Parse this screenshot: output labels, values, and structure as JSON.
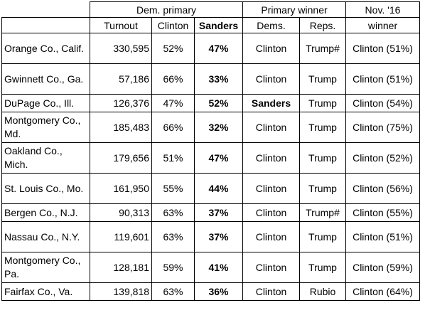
{
  "header": {
    "group_dem_primary": "Dem. primary",
    "group_primary_winner": "Primary winner",
    "group_nov16_line1": "Nov. '16",
    "nov16_line2": "winner",
    "col_turnout": "Turnout",
    "col_clinton": "Clinton",
    "col_sanders": "Sanders",
    "col_dems": "Dems.",
    "col_reps": "Reps."
  },
  "rows": [
    {
      "county": "Orange Co., Calif.",
      "turnout": "330,595",
      "clinton": "52%",
      "sanders": "47%",
      "dem_winner": "Clinton",
      "rep_winner": "Trump#",
      "nov16": "Clinton (51%)"
    },
    {
      "county": "Gwinnett Co., Ga.",
      "turnout": "57,186",
      "clinton": "66%",
      "sanders": "33%",
      "dem_winner": "Clinton",
      "rep_winner": "Trump",
      "nov16": "Clinton (51%)"
    },
    {
      "county": "DuPage Co., Ill.",
      "turnout": "126,376",
      "clinton": "47%",
      "sanders": "52%",
      "dem_winner": "Sanders",
      "rep_winner": "Trump",
      "nov16": "Clinton (54%)"
    },
    {
      "county": "Montgomery Co., Md.",
      "turnout": "185,483",
      "clinton": "66%",
      "sanders": "32%",
      "dem_winner": "Clinton",
      "rep_winner": "Trump",
      "nov16": "Clinton (75%)"
    },
    {
      "county": "Oakland Co., Mich.",
      "turnout": "179,656",
      "clinton": "51%",
      "sanders": "47%",
      "dem_winner": "Clinton",
      "rep_winner": "Trump",
      "nov16": "Clinton (52%)"
    },
    {
      "county": "St. Louis Co., Mo.",
      "turnout": "161,950",
      "clinton": "55%",
      "sanders": "44%",
      "dem_winner": "Clinton",
      "rep_winner": "Trump",
      "nov16": "Clinton (56%)"
    },
    {
      "county": "Bergen Co., N.J.",
      "turnout": "90,313",
      "clinton": "63%",
      "sanders": "37%",
      "dem_winner": "Clinton",
      "rep_winner": "Trump#",
      "nov16": "Clinton (55%)"
    },
    {
      "county": "Nassau Co., N.Y.",
      "turnout": "119,601",
      "clinton": "63%",
      "sanders": "37%",
      "dem_winner": "Clinton",
      "rep_winner": "Trump",
      "nov16": "Clinton (51%)"
    },
    {
      "county": "Montgomery Co., Pa.",
      "turnout": "128,181",
      "clinton": "59%",
      "sanders": "41%",
      "dem_winner": "Clinton",
      "rep_winner": "Trump",
      "nov16": "Clinton (59%)"
    },
    {
      "county": "Fairfax Co., Va.",
      "turnout": "139,818",
      "clinton": "63%",
      "sanders": "36%",
      "dem_winner": "Clinton",
      "rep_winner": "Rubio",
      "nov16": "Clinton (64%)"
    }
  ]
}
